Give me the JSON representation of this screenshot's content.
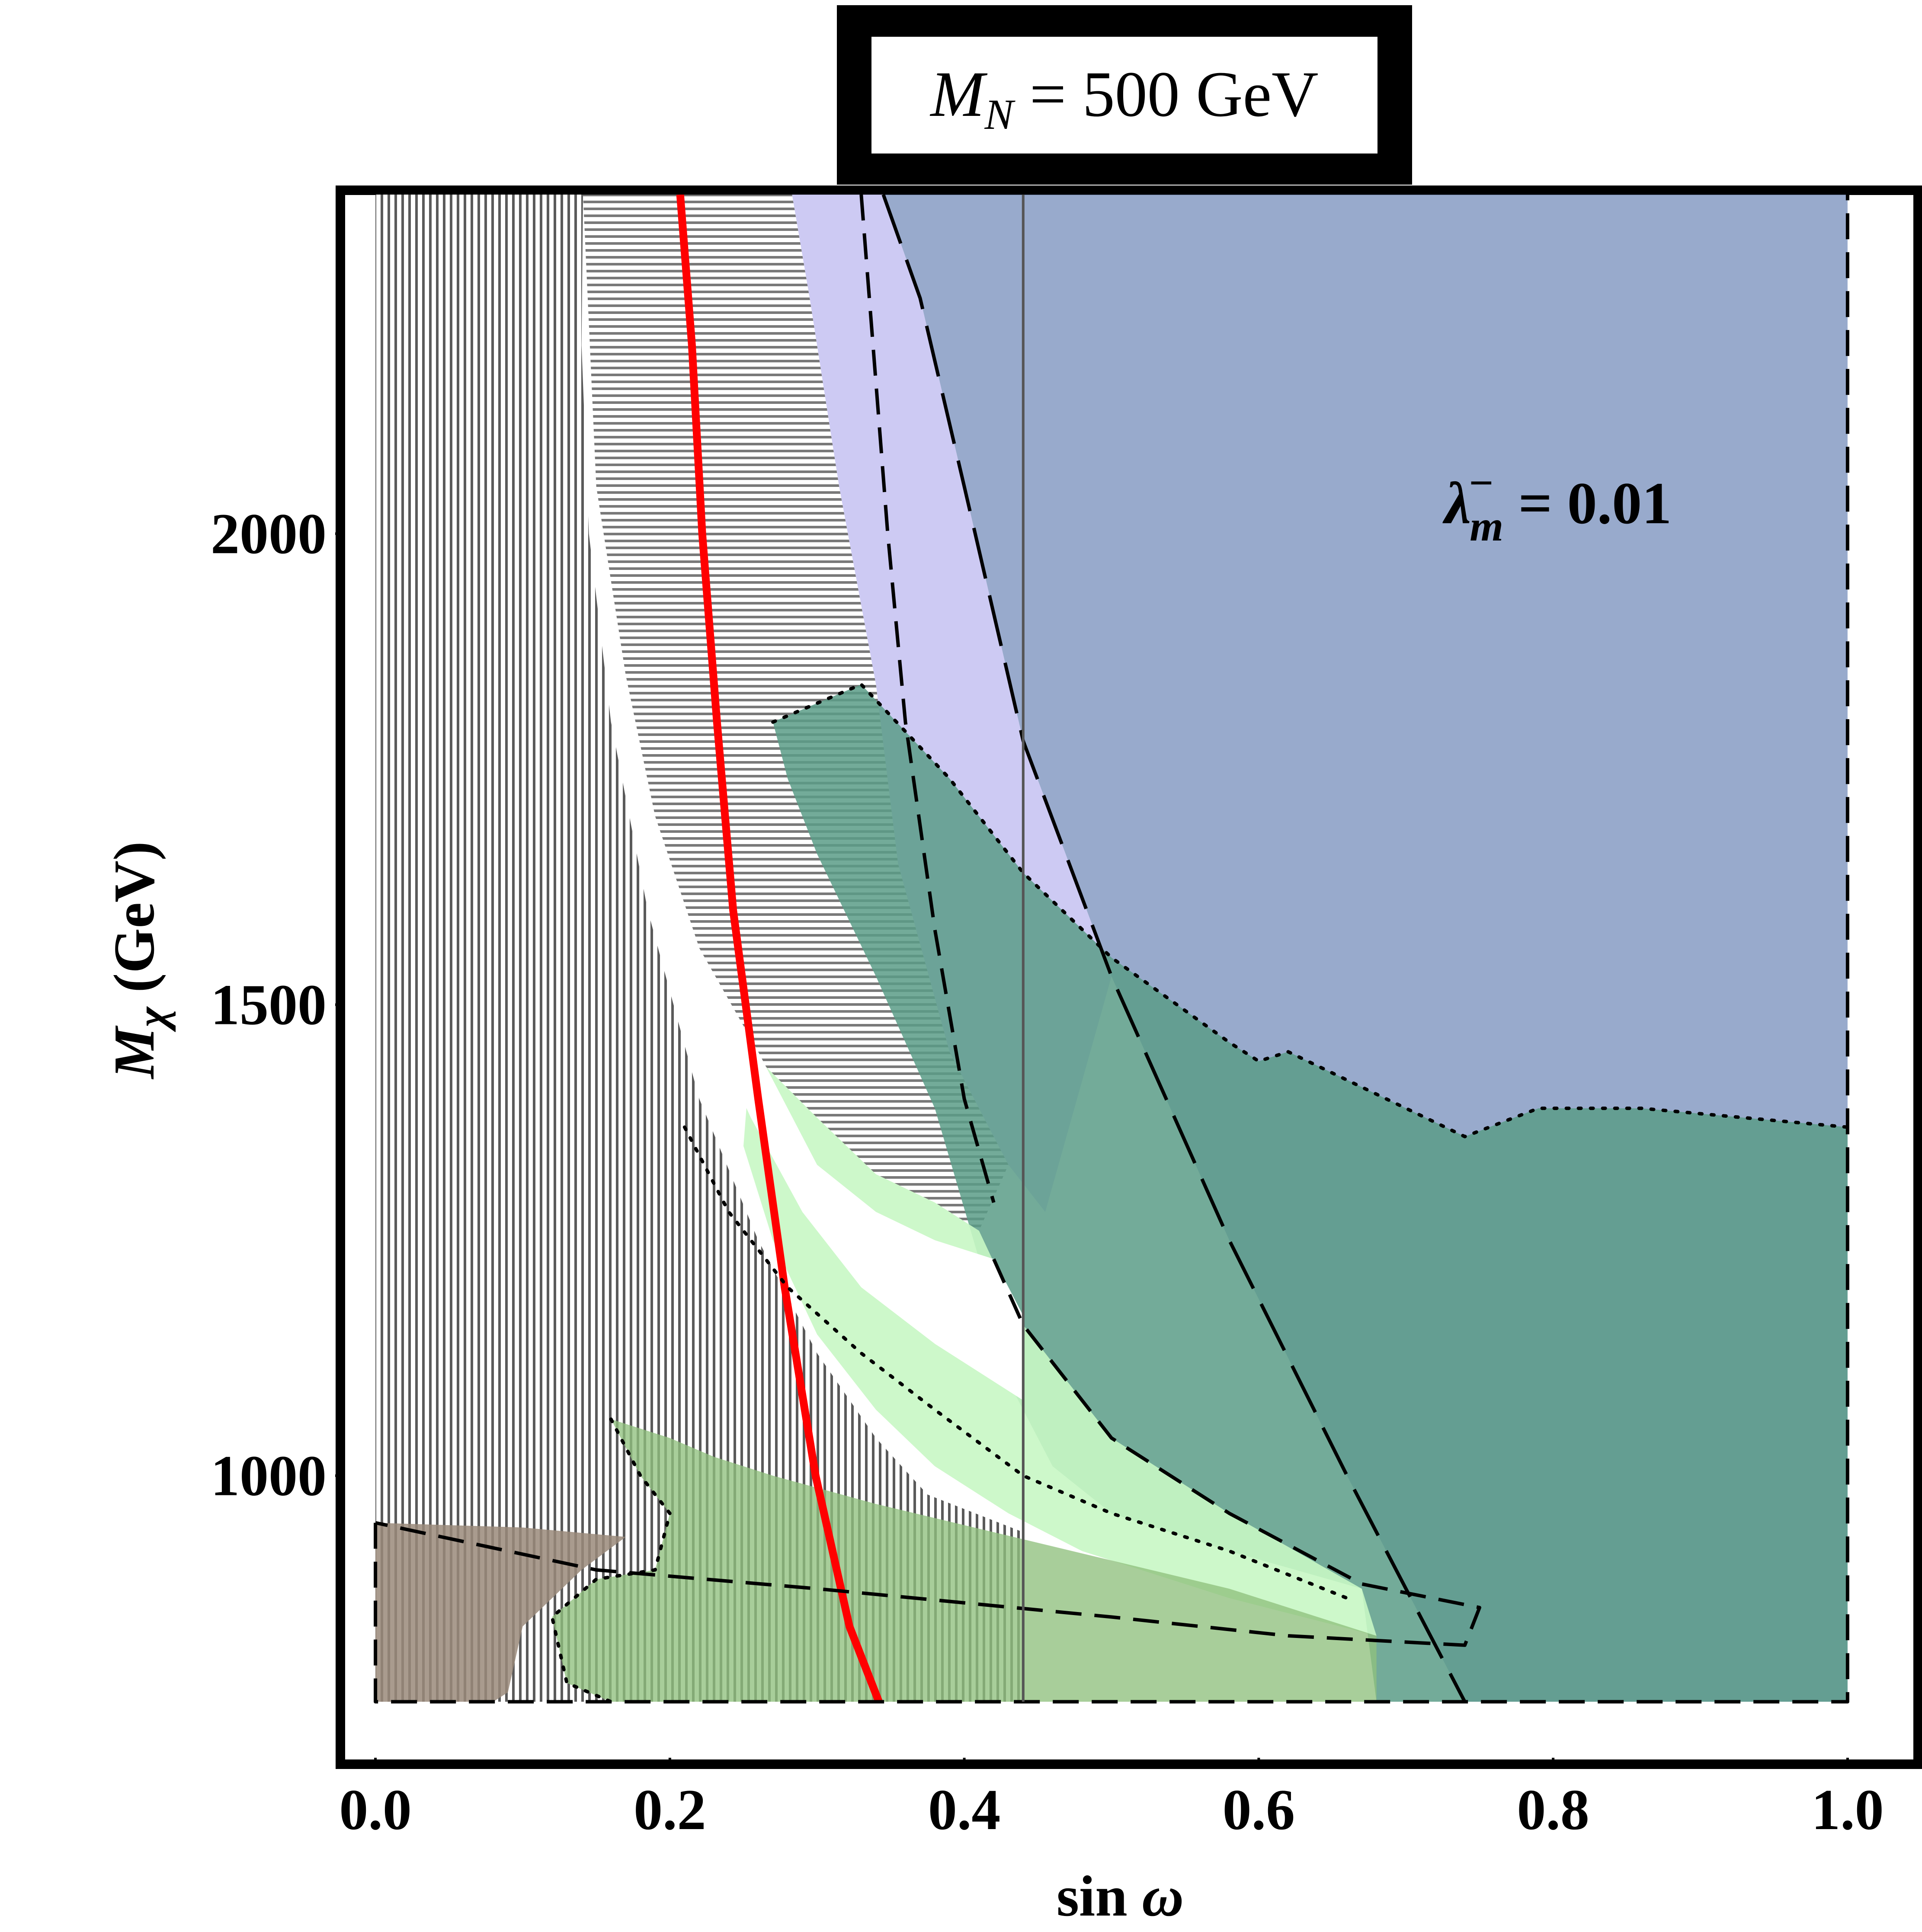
{
  "chart_data": {
    "type": "area",
    "title": "M_N = 500 GeV",
    "title_parts": {
      "sym": "M",
      "sub": "N",
      "rest": " = 500 GeV"
    },
    "xlabel_parts": {
      "text": "sin ",
      "sym": "ω"
    },
    "ylabel_parts": {
      "sym": "M",
      "sub": "χ",
      "rest": " (GeV)"
    },
    "annotation_parts": {
      "sym": "λ",
      "sup": "−",
      "sub": "m",
      "rest": " = 0.01"
    },
    "xlim": [
      -0.02,
      1.02
    ],
    "ylim": [
      735,
      2360
    ],
    "x_ticks": [
      0.0,
      0.2,
      0.4,
      0.6,
      0.8,
      1.0
    ],
    "x_tick_labels": [
      "0.0",
      "0.2",
      "0.4",
      "0.6",
      "0.8",
      "1.0"
    ],
    "y_ticks": [
      1000,
      1500,
      2000
    ],
    "y_tick_labels": [
      "1000",
      "1500",
      "2000"
    ],
    "grid": false,
    "legend": "none",
    "colors": {
      "blue_region": "#7089b8",
      "purple_region": "#c8c4f2",
      "teal_region": "#5b9c87",
      "light_green_region": "#c8f7c4",
      "green_hatched_region": "#8fc07e",
      "brown_region": "#9a8a7a",
      "hatch": "#5a5a5a",
      "red_curve": "#ff0000",
      "frame": "#000000"
    },
    "regions": [
      {
        "id": "hatched-excluded",
        "style": "hatch",
        "points": [
          [
            0.0,
            2360
          ],
          [
            0.141,
            2360
          ],
          [
            0.14,
            2200
          ],
          [
            0.145,
            2000
          ],
          [
            0.16,
            1800
          ],
          [
            0.185,
            1600
          ],
          [
            0.22,
            1400
          ],
          [
            0.26,
            1250
          ],
          [
            0.3,
            1130
          ],
          [
            0.34,
            1040
          ],
          [
            0.375,
            980
          ],
          [
            0.44,
            940
          ],
          [
            0.44,
            760
          ],
          [
            0.0,
            760
          ]
        ]
      },
      {
        "id": "blue-region",
        "color": "#7089b8",
        "opacity": 0.72,
        "points": [
          [
            0.345,
            2360
          ],
          [
            1.0,
            2360
          ],
          [
            1.0,
            760
          ],
          [
            0.74,
            760
          ],
          [
            0.66,
            1000
          ],
          [
            0.58,
            1250
          ],
          [
            0.5,
            1530
          ],
          [
            0.44,
            1780
          ],
          [
            0.4,
            2050
          ],
          [
            0.37,
            2250
          ]
        ]
      },
      {
        "id": "purple-region",
        "color": "#c8c4f2",
        "opacity": 0.9,
        "points": [
          [
            0.283,
            2360
          ],
          [
            0.345,
            2360
          ],
          [
            0.37,
            2250
          ],
          [
            0.4,
            2050
          ],
          [
            0.44,
            1780
          ],
          [
            0.5,
            1530
          ],
          [
            0.455,
            1280
          ],
          [
            0.43,
            1330
          ],
          [
            0.39,
            1450
          ],
          [
            0.355,
            1650
          ],
          [
            0.34,
            1840
          ],
          [
            0.315,
            2050
          ],
          [
            0.295,
            2250
          ]
        ]
      },
      {
        "id": "teal-region",
        "color": "#5b9c87",
        "opacity": 0.85,
        "points": [
          [
            0.27,
            1800
          ],
          [
            0.33,
            1840
          ],
          [
            0.39,
            1740
          ],
          [
            0.44,
            1640
          ],
          [
            0.5,
            1550
          ],
          [
            0.58,
            1460
          ],
          [
            0.6,
            1440
          ],
          [
            0.62,
            1450
          ],
          [
            0.66,
            1420
          ],
          [
            0.74,
            1360
          ],
          [
            0.79,
            1390
          ],
          [
            0.86,
            1390
          ],
          [
            1.0,
            1370
          ],
          [
            1.0,
            760
          ],
          [
            0.68,
            760
          ],
          [
            0.67,
            880
          ],
          [
            0.58,
            920
          ],
          [
            0.5,
            960
          ],
          [
            0.46,
            1010
          ],
          [
            0.43,
            1100
          ],
          [
            0.41,
            1230
          ],
          [
            0.38,
            1390
          ],
          [
            0.34,
            1530
          ],
          [
            0.3,
            1660
          ],
          [
            0.28,
            1740
          ]
        ]
      },
      {
        "id": "light-green-region",
        "color": "#c8f7c4",
        "opacity": 0.9,
        "points": [
          [
            0.255,
            1450
          ],
          [
            0.3,
            1380
          ],
          [
            0.34,
            1320
          ],
          [
            0.38,
            1290
          ],
          [
            0.41,
            1260
          ],
          [
            0.44,
            1160
          ],
          [
            0.5,
            1040
          ],
          [
            0.58,
            960
          ],
          [
            0.67,
            880
          ],
          [
            0.68,
            830
          ],
          [
            0.58,
            870
          ],
          [
            0.48,
            920
          ],
          [
            0.43,
            960
          ],
          [
            0.38,
            1010
          ],
          [
            0.34,
            1070
          ],
          [
            0.3,
            1150
          ],
          [
            0.27,
            1250
          ],
          [
            0.25,
            1350
          ]
        ]
      },
      {
        "id": "white-gap",
        "color": "#ffffff",
        "opacity": 1.0,
        "points": [
          [
            0.19,
            1700
          ],
          [
            0.22,
            1560
          ],
          [
            0.26,
            1450
          ],
          [
            0.3,
            1330
          ],
          [
            0.34,
            1280
          ],
          [
            0.38,
            1250
          ],
          [
            0.42,
            1230
          ],
          [
            0.44,
            1170
          ],
          [
            0.44,
            1080
          ],
          [
            0.38,
            1140
          ],
          [
            0.33,
            1200
          ],
          [
            0.29,
            1280
          ],
          [
            0.255,
            1380
          ],
          [
            0.22,
            1500
          ],
          [
            0.2,
            1600
          ]
        ]
      },
      {
        "id": "green-hatched-region",
        "color": "#8fc07e",
        "opacity": 0.78,
        "points": [
          [
            0.16,
            1060
          ],
          [
            0.18,
            1000
          ],
          [
            0.2,
            960
          ],
          [
            0.19,
            900
          ],
          [
            0.15,
            890
          ],
          [
            0.12,
            850
          ],
          [
            0.13,
            780
          ],
          [
            0.16,
            760
          ],
          [
            0.68,
            760
          ],
          [
            0.68,
            830
          ],
          [
            0.58,
            880
          ],
          [
            0.5,
            910
          ],
          [
            0.42,
            940
          ],
          [
            0.34,
            970
          ],
          [
            0.27,
            1000
          ],
          [
            0.23,
            1020
          ],
          [
            0.2,
            1040
          ]
        ]
      },
      {
        "id": "brown-region",
        "color": "#9a8a7a",
        "opacity": 0.85,
        "points": [
          [
            0.0,
            950
          ],
          [
            0.1,
            945
          ],
          [
            0.17,
            935
          ],
          [
            0.14,
            900
          ],
          [
            0.1,
            840
          ],
          [
            0.09,
            770
          ],
          [
            0.08,
            760
          ],
          [
            0.0,
            760
          ]
        ]
      }
    ],
    "series": [
      {
        "id": "red-curve",
        "style": "solid",
        "color": "#ff0000",
        "points": [
          [
            0.207,
            2360
          ],
          [
            0.215,
            2200
          ],
          [
            0.222,
            2000
          ],
          [
            0.232,
            1800
          ],
          [
            0.243,
            1600
          ],
          [
            0.26,
            1400
          ],
          [
            0.278,
            1200
          ],
          [
            0.299,
            1000
          ],
          [
            0.322,
            840
          ],
          [
            0.342,
            760
          ]
        ]
      },
      {
        "id": "long-dash-boundary",
        "style": "longdash",
        "color": "#000000",
        "points": [
          [
            0.345,
            2360
          ],
          [
            0.37,
            2250
          ],
          [
            0.4,
            2050
          ],
          [
            0.44,
            1780
          ],
          [
            0.5,
            1530
          ],
          [
            0.58,
            1250
          ],
          [
            0.66,
            1000
          ],
          [
            0.74,
            760
          ]
        ]
      },
      {
        "id": "dash-boundary-upper",
        "style": "dash",
        "color": "#000000",
        "points": [
          [
            0.33,
            2360
          ],
          [
            0.338,
            2200
          ],
          [
            0.348,
            2000
          ],
          [
            0.36,
            1800
          ],
          [
            0.38,
            1580
          ],
          [
            0.4,
            1400
          ],
          [
            0.42,
            1290
          ]
        ]
      },
      {
        "id": "dash-boundary-lower",
        "style": "dash",
        "color": "#000000",
        "points": [
          [
            0.42,
            1230
          ],
          [
            0.44,
            1160
          ],
          [
            0.5,
            1040
          ],
          [
            0.58,
            960
          ],
          [
            0.67,
            885
          ],
          [
            0.75,
            860
          ],
          [
            0.74,
            820
          ],
          [
            0.62,
            830
          ],
          [
            0.5,
            850
          ],
          [
            0.3,
            880
          ],
          [
            0.15,
            900
          ],
          [
            0.0,
            950
          ]
        ]
      },
      {
        "id": "dash-bottom",
        "style": "dash",
        "color": "#000000",
        "points": [
          [
            0.0,
            950
          ],
          [
            0.0,
            760
          ],
          [
            1.0,
            760
          ],
          [
            1.0,
            2360
          ]
        ]
      },
      {
        "id": "dotted-teal-top",
        "style": "dotted",
        "color": "#000000",
        "points": [
          [
            0.27,
            1800
          ],
          [
            0.33,
            1840
          ],
          [
            0.39,
            1740
          ],
          [
            0.44,
            1640
          ],
          [
            0.5,
            1550
          ],
          [
            0.58,
            1460
          ],
          [
            0.6,
            1440
          ],
          [
            0.62,
            1450
          ],
          [
            0.66,
            1420
          ],
          [
            0.74,
            1360
          ],
          [
            0.79,
            1390
          ],
          [
            0.86,
            1390
          ],
          [
            1.0,
            1370
          ]
        ]
      },
      {
        "id": "dotted-green-island",
        "style": "dotted",
        "color": "#000000",
        "points": [
          [
            0.21,
            1370
          ],
          [
            0.24,
            1280
          ],
          [
            0.28,
            1200
          ],
          [
            0.33,
            1130
          ],
          [
            0.38,
            1070
          ],
          [
            0.44,
            1000
          ],
          [
            0.5,
            960
          ],
          [
            0.58,
            920
          ],
          [
            0.66,
            870
          ]
        ]
      },
      {
        "id": "dotted-green-hatched",
        "style": "dotted",
        "color": "#000000",
        "points": [
          [
            0.16,
            1060
          ],
          [
            0.18,
            1000
          ],
          [
            0.2,
            960
          ],
          [
            0.19,
            900
          ],
          [
            0.15,
            890
          ],
          [
            0.12,
            850
          ],
          [
            0.13,
            780
          ],
          [
            0.16,
            760
          ]
        ]
      },
      {
        "id": "vertical-line",
        "style": "solid-thin",
        "color": "#555555",
        "points": [
          [
            0.44,
            2360
          ],
          [
            0.44,
            760
          ]
        ]
      }
    ]
  }
}
